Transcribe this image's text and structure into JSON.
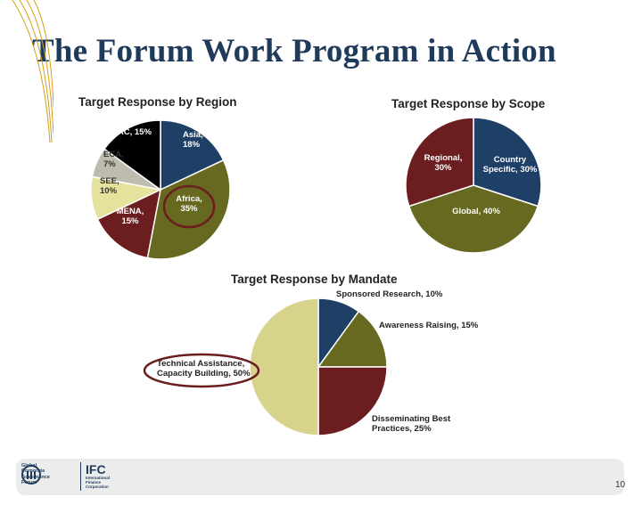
{
  "slide": {
    "title": "The Forum Work Program in Action",
    "page_number": "10"
  },
  "logos": {
    "gcgf_text": "Global Corporate Governance Forum",
    "ifc_mark": "IFC",
    "ifc_text": "International Finance Corporation"
  },
  "colors": {
    "navy": "#1e3f66",
    "olive": "#66691f",
    "maroon": "#6b1d1f",
    "beige": "#d7d38a",
    "gray": "#bdbcae",
    "pale_yellow": "#e4e29c",
    "black": "#000000",
    "highlight_ring": "#6b1d1f",
    "title_color": "#1f3a5a",
    "deco_lines": "#d4a017"
  },
  "chart_data": [
    {
      "type": "pie",
      "title": "Target Response by Region",
      "slices": [
        {
          "label": "Asia, 18%",
          "value": 18,
          "color": "#1e3f66"
        },
        {
          "label": "Africa, 35%",
          "value": 35,
          "color": "#66691f",
          "highlighted": true
        },
        {
          "label": "MENA, 15%",
          "value": 15,
          "color": "#6b1d1f"
        },
        {
          "label": "SEE, 10%",
          "value": 10,
          "color": "#e4e29c"
        },
        {
          "label": "ECA, 7%",
          "value": 7,
          "color": "#bdbcae"
        },
        {
          "label": "LAC, 15%",
          "value": 15,
          "color": "#000000"
        }
      ]
    },
    {
      "type": "pie",
      "title": "Target Response by Scope",
      "slices": [
        {
          "label": "Country Specific, 30%",
          "value": 30,
          "color": "#1e3f66"
        },
        {
          "label": "Global, 40%",
          "value": 40,
          "color": "#66691f"
        },
        {
          "label": "Regional, 30%",
          "value": 30,
          "color": "#6b1d1f"
        }
      ]
    },
    {
      "type": "pie",
      "title": "Target Response by Mandate",
      "slices": [
        {
          "label": "Sponsored Research, 10%",
          "value": 10,
          "color": "#1e3f66"
        },
        {
          "label": "Awareness Raising, 15%",
          "value": 15,
          "color": "#66691f"
        },
        {
          "label": "Disseminating Best Practices, 25%",
          "value": 25,
          "color": "#6b1d1f"
        },
        {
          "label": "Technical Assistance, Capacity Building, 50%",
          "value": 50,
          "color": "#d7d38a",
          "highlighted": true
        }
      ]
    }
  ]
}
